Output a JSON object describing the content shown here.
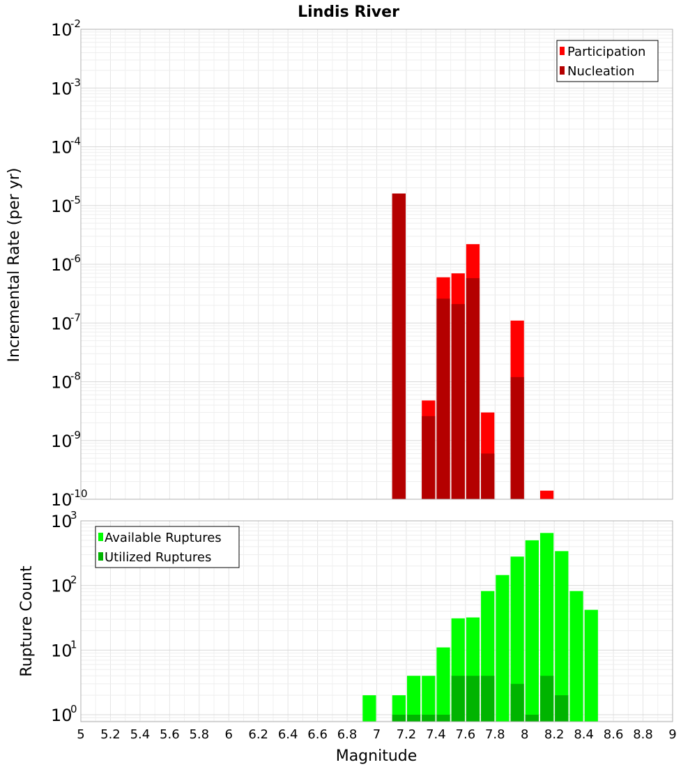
{
  "chart_data": [
    {
      "type": "bar",
      "title": "Lindis River",
      "xlabel": "",
      "ylabel": "Incremental Rate (per yr)",
      "y_scale": "log",
      "xlim": [
        5,
        9
      ],
      "ylim": [
        1e-10,
        0.01
      ],
      "yticks": [
        {
          "base": "10",
          "exp": "-2"
        },
        {
          "base": "10",
          "exp": "-3"
        },
        {
          "base": "10",
          "exp": "-4"
        },
        {
          "base": "10",
          "exp": "-5"
        },
        {
          "base": "10",
          "exp": "-6"
        },
        {
          "base": "10",
          "exp": "-7"
        },
        {
          "base": "10",
          "exp": "-8"
        },
        {
          "base": "10",
          "exp": "-9"
        },
        {
          "base": "10",
          "exp": "-10"
        }
      ],
      "grid": true,
      "legend_position": "top-right",
      "series": [
        {
          "name": "Participation",
          "color": "#ff0000",
          "x": [
            7.15,
            7.35,
            7.45,
            7.55,
            7.65,
            7.75,
            7.95,
            8.15
          ],
          "values": [
            1.6e-05,
            4.8e-09,
            6e-07,
            7e-07,
            2.2e-06,
            3e-09,
            1.1e-07,
            1.4e-10
          ]
        },
        {
          "name": "Nucleation",
          "color": "#b40000",
          "x": [
            7.15,
            7.35,
            7.45,
            7.55,
            7.65,
            7.75,
            7.95
          ],
          "values": [
            1.6e-05,
            2.6e-09,
            2.6e-07,
            2.1e-07,
            5.8e-07,
            6e-10,
            1.2e-08
          ]
        }
      ]
    },
    {
      "type": "bar",
      "title": "",
      "xlabel": "Magnitude",
      "ylabel": "Rupture Count",
      "y_scale": "log",
      "xlim": [
        5,
        9
      ],
      "ylim": [
        0.78,
        1000
      ],
      "yticks": [
        {
          "base": "10",
          "exp": "3"
        },
        {
          "base": "10",
          "exp": "2"
        },
        {
          "base": "10",
          "exp": "1"
        },
        {
          "base": "10",
          "exp": "0"
        }
      ],
      "xticks": [
        "5",
        "5.2",
        "5.4",
        "5.6",
        "5.8",
        "6",
        "6.2",
        "6.4",
        "6.6",
        "6.8",
        "7",
        "7.2",
        "7.4",
        "7.6",
        "7.8",
        "8",
        "8.2",
        "8.4",
        "8.6",
        "8.8",
        "9"
      ],
      "grid": true,
      "legend_position": "top-left",
      "series": [
        {
          "name": "Available Ruptures",
          "color": "#00ff00",
          "x": [
            6.95,
            7.15,
            7.25,
            7.35,
            7.45,
            7.55,
            7.65,
            7.75,
            7.85,
            7.95,
            8.05,
            8.15,
            8.25,
            8.35,
            8.45
          ],
          "values": [
            2,
            2,
            4,
            4,
            11,
            31,
            32,
            82,
            145,
            280,
            500,
            650,
            340,
            82,
            42
          ]
        },
        {
          "name": "Utilized Ruptures",
          "color": "#00b400",
          "x": [
            7.15,
            7.25,
            7.35,
            7.45,
            7.55,
            7.65,
            7.75,
            7.95,
            8.05,
            8.15,
            8.25
          ],
          "values": [
            1,
            1,
            1,
            1,
            4,
            4,
            4,
            3,
            1,
            4,
            2
          ]
        }
      ]
    }
  ]
}
